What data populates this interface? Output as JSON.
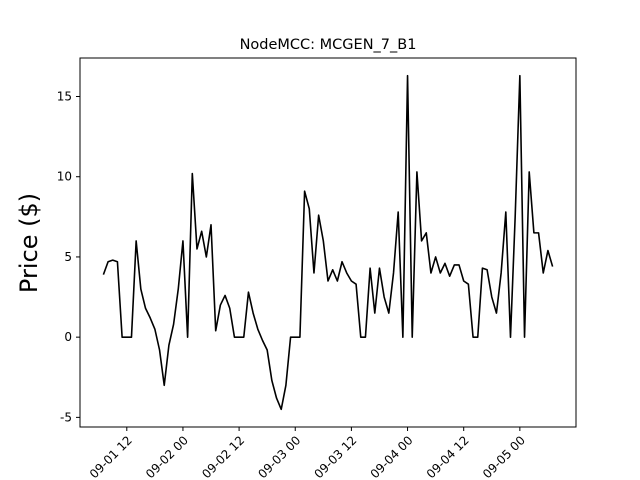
{
  "chart_data": {
    "type": "line",
    "title": "NodeMCC: MCGEN_7_B1",
    "y_label": "Price ($)",
    "color": "#000000",
    "x": [
      "09-01 07",
      "09-01 08",
      "09-01 09",
      "09-01 10",
      "09-01 11",
      "09-01 12",
      "09-01 13",
      "09-01 14",
      "09-01 15",
      "09-01 16",
      "09-01 17",
      "09-01 18",
      "09-01 19",
      "09-01 20",
      "09-01 21",
      "09-01 22",
      "09-01 23",
      "09-02 00",
      "09-02 01",
      "09-02 02",
      "09-02 03",
      "09-02 04",
      "09-02 05",
      "09-02 06",
      "09-02 07",
      "09-02 08",
      "09-02 09",
      "09-02 10",
      "09-02 11",
      "09-02 12",
      "09-02 13",
      "09-02 14",
      "09-02 15",
      "09-02 16",
      "09-02 17",
      "09-02 18",
      "09-02 19",
      "09-02 20",
      "09-02 21",
      "09-02 22",
      "09-02 23",
      "09-03 00",
      "09-03 01",
      "09-03 02",
      "09-03 03",
      "09-03 04",
      "09-03 05",
      "09-03 06",
      "09-03 07",
      "09-03 08",
      "09-03 09",
      "09-03 10",
      "09-03 11",
      "09-03 12",
      "09-03 13",
      "09-03 14",
      "09-03 15",
      "09-03 16",
      "09-03 17",
      "09-03 18",
      "09-03 19",
      "09-03 20",
      "09-03 21",
      "09-03 22",
      "09-03 23",
      "09-04 00",
      "09-04 01",
      "09-04 02",
      "09-04 03",
      "09-04 04",
      "09-04 05",
      "09-04 06",
      "09-04 07",
      "09-04 08",
      "09-04 09",
      "09-04 10",
      "09-04 11",
      "09-04 12",
      "09-04 13",
      "09-04 14",
      "09-04 15",
      "09-04 16",
      "09-04 17",
      "09-04 18",
      "09-04 19",
      "09-04 20",
      "09-04 21",
      "09-04 22",
      "09-04 23",
      "09-05 00",
      "09-05 01",
      "09-05 02",
      "09-05 03",
      "09-05 04",
      "09-05 05",
      "09-05 06",
      "09-05 07"
    ],
    "values": [
      3.9,
      4.7,
      4.8,
      4.7,
      0,
      0,
      0,
      6.0,
      3.0,
      1.8,
      1.2,
      0.5,
      -0.8,
      -3.0,
      -0.5,
      0.8,
      3.0,
      6.0,
      0,
      10.2,
      5.5,
      6.6,
      5.0,
      7.0,
      0.4,
      2.0,
      2.6,
      1.8,
      0,
      0,
      0,
      2.8,
      1.5,
      0.5,
      -0.2,
      -0.8,
      -2.7,
      -3.8,
      -4.5,
      -3.0,
      0,
      0,
      0,
      9.1,
      8.0,
      4.0,
      7.6,
      6.0,
      3.5,
      4.2,
      3.5,
      4.7,
      4.0,
      3.5,
      3.3,
      0,
      0,
      4.3,
      1.5,
      4.3,
      2.5,
      1.5,
      4.0,
      7.8,
      0,
      16.3,
      0,
      10.3,
      6.0,
      6.5,
      4.0,
      5.0,
      4.0,
      4.6,
      3.8,
      4.5,
      4.5,
      3.5,
      3.3,
      0,
      0,
      4.3,
      4.2,
      2.5,
      1.5,
      4.0,
      7.8,
      0,
      7.5,
      16.3,
      0,
      10.3,
      6.5,
      6.5,
      4.0,
      5.4,
      4.4
    ],
    "xlim": [
      "09-01 02",
      "09-05 12"
    ],
    "xticks": [
      "09-01 12",
      "09-02 00",
      "09-02 12",
      "09-03 00",
      "09-03 12",
      "09-04 00",
      "09-04 12",
      "09-05 00"
    ],
    "ylim": [
      -5.6,
      17.4
    ],
    "yticks": [
      -5,
      0,
      5,
      10,
      15
    ],
    "grid": false
  }
}
